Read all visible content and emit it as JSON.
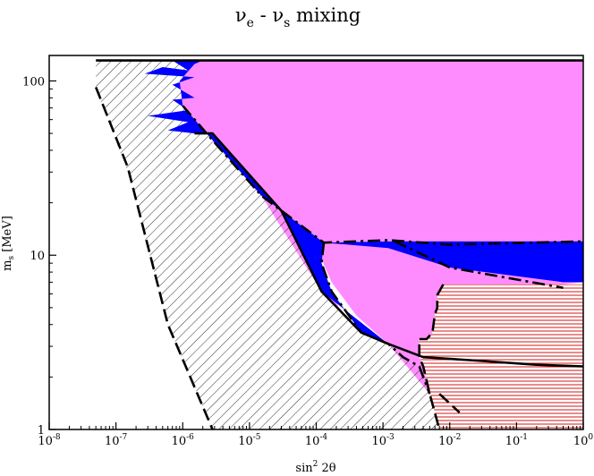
{
  "chart_data": {
    "type": "area",
    "title": "νe - νs mixing",
    "title_parts": {
      "nu": "ν",
      "sub_e": "e",
      "sep": " - ",
      "sub_s": "s",
      "rest": " mixing"
    },
    "xlabel": "sin² 2θ",
    "xlabel_parts": {
      "base": "sin",
      "sup": "2",
      "rest": " 2θ"
    },
    "ylabel": "m_s [MeV]",
    "ylabel_parts": {
      "base": "m",
      "sub": "s",
      "rest": " [MeV]"
    },
    "xscale": "log",
    "yscale": "log",
    "xlim": [
      1e-08,
      1
    ],
    "ylim": [
      1,
      140
    ],
    "x_ticks": [
      {
        "value": 1e-08,
        "base": "10",
        "exp": "-8"
      },
      {
        "value": 1e-07,
        "base": "10",
        "exp": "-7"
      },
      {
        "value": 1e-06,
        "base": "10",
        "exp": "-6"
      },
      {
        "value": 1e-05,
        "base": "10",
        "exp": "-5"
      },
      {
        "value": 0.0001,
        "base": "10",
        "exp": "-4"
      },
      {
        "value": 0.001,
        "base": "10",
        "exp": "-3"
      },
      {
        "value": 0.01,
        "base": "10",
        "exp": "-2"
      },
      {
        "value": 0.1,
        "base": "10",
        "exp": "-1"
      },
      {
        "value": 1,
        "base": "10",
        "exp": "0"
      }
    ],
    "y_ticks": [
      {
        "value": 1,
        "label": "1"
      },
      {
        "value": 10,
        "label": "10"
      },
      {
        "value": 100,
        "label": "100"
      }
    ],
    "grid": false,
    "legend": "none",
    "colors": {
      "magenta_region": "#ff8cff",
      "blue_region": "#0000ff",
      "hatch_line": "#000000",
      "red_hatch": "#cc0000",
      "curve": "#000000"
    },
    "regions": [
      {
        "name": "magenta-region",
        "fill": "magenta",
        "points": [
          [
            2e-06,
            131
          ],
          [
            1,
            131
          ],
          [
            1,
            12
          ],
          [
            0.0015,
            12
          ],
          [
            0.00012,
            11.5
          ],
          [
            0.00012,
            9
          ],
          [
            0.00013,
            7
          ],
          [
            0.00022,
            5
          ],
          [
            0.00047,
            3.6
          ],
          [
            0.0012,
            3.1
          ],
          [
            0.002,
            2.6
          ],
          [
            0.0035,
            2.3
          ],
          [
            0.005,
            1.6
          ],
          [
            0.004,
            1.85
          ],
          [
            0.0032,
            2.4
          ],
          [
            0.002,
            3.1
          ],
          [
            0.0012,
            3.1
          ],
          [
            0.00047,
            3.6
          ],
          [
            0.00012,
            6.2
          ],
          [
            1.5e-05,
            22
          ],
          [
            2.5e-06,
            48
          ],
          [
            1e-06,
            72
          ],
          [
            9e-07,
            100
          ],
          [
            1.5e-06,
            125
          ]
        ]
      },
      {
        "name": "magenta-region-lower",
        "fill": "magenta",
        "points": [
          [
            0.00013,
            11.8
          ],
          [
            0.0015,
            12
          ],
          [
            1,
            12
          ],
          [
            1,
            7
          ],
          [
            0.5,
            6.8
          ],
          [
            0.008,
            6.8
          ],
          [
            0.0065,
            5.9
          ],
          [
            0.0065,
            5.0
          ],
          [
            0.006,
            4.6
          ],
          [
            0.0055,
            3.6
          ],
          [
            0.0045,
            3.3
          ],
          [
            0.0035,
            3.3
          ],
          [
            0.0035,
            2.6
          ],
          [
            0.004,
            2.3
          ],
          [
            0.005,
            1.6
          ],
          [
            0.0012,
            3.1
          ],
          [
            0.0004,
            4.5
          ],
          [
            0.00017,
            7
          ],
          [
            0.00012,
            9.5
          ]
        ]
      },
      {
        "name": "blue-region-top",
        "fill": "blue",
        "points": [
          [
            7e-07,
            131
          ],
          [
            2e-06,
            131
          ],
          [
            1.5e-06,
            125
          ],
          [
            9e-07,
            100
          ],
          [
            1e-06,
            72
          ],
          [
            2.5e-06,
            48
          ],
          [
            1.5e-05,
            22
          ],
          [
            0.00013,
            11.8
          ],
          [
            0.0015,
            12
          ],
          [
            1,
            12
          ],
          [
            1,
            7
          ],
          [
            0.5,
            7
          ],
          [
            0.01,
            8.5
          ],
          [
            0.0012,
            11
          ],
          [
            0.00013,
            11.8
          ],
          [
            0.00012,
            9
          ],
          [
            0.00017,
            6.2
          ],
          [
            0.00047,
            3.6
          ],
          [
            0.0012,
            3.1
          ],
          [
            0.00012,
            6.2
          ],
          [
            3e-05,
            18
          ],
          [
            2.8e-06,
            50
          ],
          [
            1.5e-06,
            50
          ],
          [
            6e-07,
            52
          ],
          [
            1.2e-06,
            58
          ],
          [
            3e-07,
            63
          ],
          [
            1.2e-06,
            68
          ],
          [
            7e-07,
            78
          ],
          [
            1.5e-06,
            80
          ],
          [
            7e-07,
            95
          ],
          [
            1.5e-06,
            105
          ],
          [
            2.7e-07,
            110
          ],
          [
            5e-07,
            120
          ],
          [
            1.2e-06,
            115
          ]
        ]
      },
      {
        "name": "hatched-black-region",
        "fill": "black-diagonal-hatch",
        "points": [
          [
            5e-08,
            131
          ],
          [
            7e-07,
            131
          ],
          [
            1.2e-06,
            115
          ],
          [
            5e-07,
            120
          ],
          [
            2.7e-07,
            110
          ],
          [
            1.5e-06,
            105
          ],
          [
            7e-07,
            95
          ],
          [
            1.5e-06,
            80
          ],
          [
            7e-07,
            78
          ],
          [
            1.2e-06,
            68
          ],
          [
            3e-07,
            63
          ],
          [
            1.2e-06,
            58
          ],
          [
            6e-07,
            52
          ],
          [
            1.5e-06,
            50
          ],
          [
            2.8e-06,
            50
          ],
          [
            3e-05,
            18
          ],
          [
            0.00012,
            6.2
          ],
          [
            0.00047,
            3.6
          ],
          [
            0.0012,
            3.1
          ],
          [
            0.002,
            2.6
          ],
          [
            0.0035,
            2.3
          ],
          [
            0.005,
            1.6
          ],
          [
            0.007,
            1
          ],
          [
            2.8e-06,
            1
          ],
          [
            6e-07,
            4
          ],
          [
            1.5e-07,
            30
          ],
          [
            5e-08,
            90
          ]
        ]
      },
      {
        "name": "red-hatched-region",
        "fill": "red-horizontal-hatch",
        "points": [
          [
            0.008,
            6.8
          ],
          [
            1,
            6.8
          ],
          [
            1,
            1
          ],
          [
            0.007,
            1
          ],
          [
            0.005,
            1.6
          ],
          [
            0.004,
            2.3
          ],
          [
            0.0035,
            2.6
          ],
          [
            0.0035,
            3.3
          ],
          [
            0.0045,
            3.3
          ],
          [
            0.0055,
            3.6
          ],
          [
            0.006,
            4.6
          ],
          [
            0.0065,
            5.0
          ],
          [
            0.0065,
            5.9
          ]
        ]
      }
    ],
    "curves": [
      {
        "name": "solid-boundary",
        "style": "solid",
        "points": [
          [
            5e-08,
            131
          ],
          [
            1,
            131
          ]
        ]
      },
      {
        "name": "solid-boundary-descending",
        "style": "solid",
        "points": [
          [
            1.5e-06,
            50
          ],
          [
            2.8e-06,
            50
          ],
          [
            3e-05,
            18
          ],
          [
            0.00012,
            6.2
          ],
          [
            0.00047,
            3.6
          ],
          [
            0.0012,
            3.1
          ],
          [
            0.004,
            2.6
          ],
          [
            0.02,
            2.5
          ],
          [
            0.2,
            2.35
          ],
          [
            1,
            2.3
          ]
        ]
      },
      {
        "name": "dashed-boundary",
        "style": "dashed",
        "points": [
          [
            5e-08,
            92
          ],
          [
            1.5e-07,
            32
          ],
          [
            6e-07,
            4
          ],
          [
            2.8e-06,
            1
          ]
        ]
      },
      {
        "name": "dashdot-upper",
        "style": "dashdot",
        "points": [
          [
            1e-06,
            72
          ],
          [
            2.5e-06,
            48
          ],
          [
            1.5e-05,
            22
          ],
          [
            0.00013,
            11.8
          ],
          [
            0.0012,
            12.2
          ],
          [
            0.01,
            11.5
          ],
          [
            1,
            12
          ]
        ]
      },
      {
        "name": "dashdot-lower",
        "style": "dashdot",
        "points": [
          [
            0.00013,
            11.8
          ],
          [
            0.00012,
            9
          ],
          [
            0.00017,
            6.2
          ],
          [
            0.00047,
            3.6
          ],
          [
            0.0012,
            3.1
          ],
          [
            0.002,
            2.6
          ],
          [
            0.0035,
            2.3
          ],
          [
            0.005,
            1.6
          ]
        ]
      },
      {
        "name": "dashdot-right",
        "style": "dashdot",
        "points": [
          [
            0.0015,
            12
          ],
          [
            0.01,
            8.5
          ],
          [
            0.5,
            6.5
          ]
        ]
      },
      {
        "name": "dashed-red-edge",
        "style": "dashed",
        "points": [
          [
            0.008,
            6.8
          ],
          [
            0.0065,
            5.9
          ],
          [
            0.0065,
            5.0
          ],
          [
            0.006,
            4.6
          ],
          [
            0.0055,
            3.6
          ],
          [
            0.0045,
            3.3
          ],
          [
            0.0035,
            3.3
          ],
          [
            0.0035,
            2.6
          ],
          [
            0.004,
            2.3
          ],
          [
            0.005,
            1.6
          ],
          [
            0.007,
            1
          ]
        ]
      },
      {
        "name": "dashed-tail",
        "style": "dashed",
        "points": [
          [
            0.007,
            1.6
          ],
          [
            0.014,
            1.25
          ]
        ]
      }
    ]
  }
}
